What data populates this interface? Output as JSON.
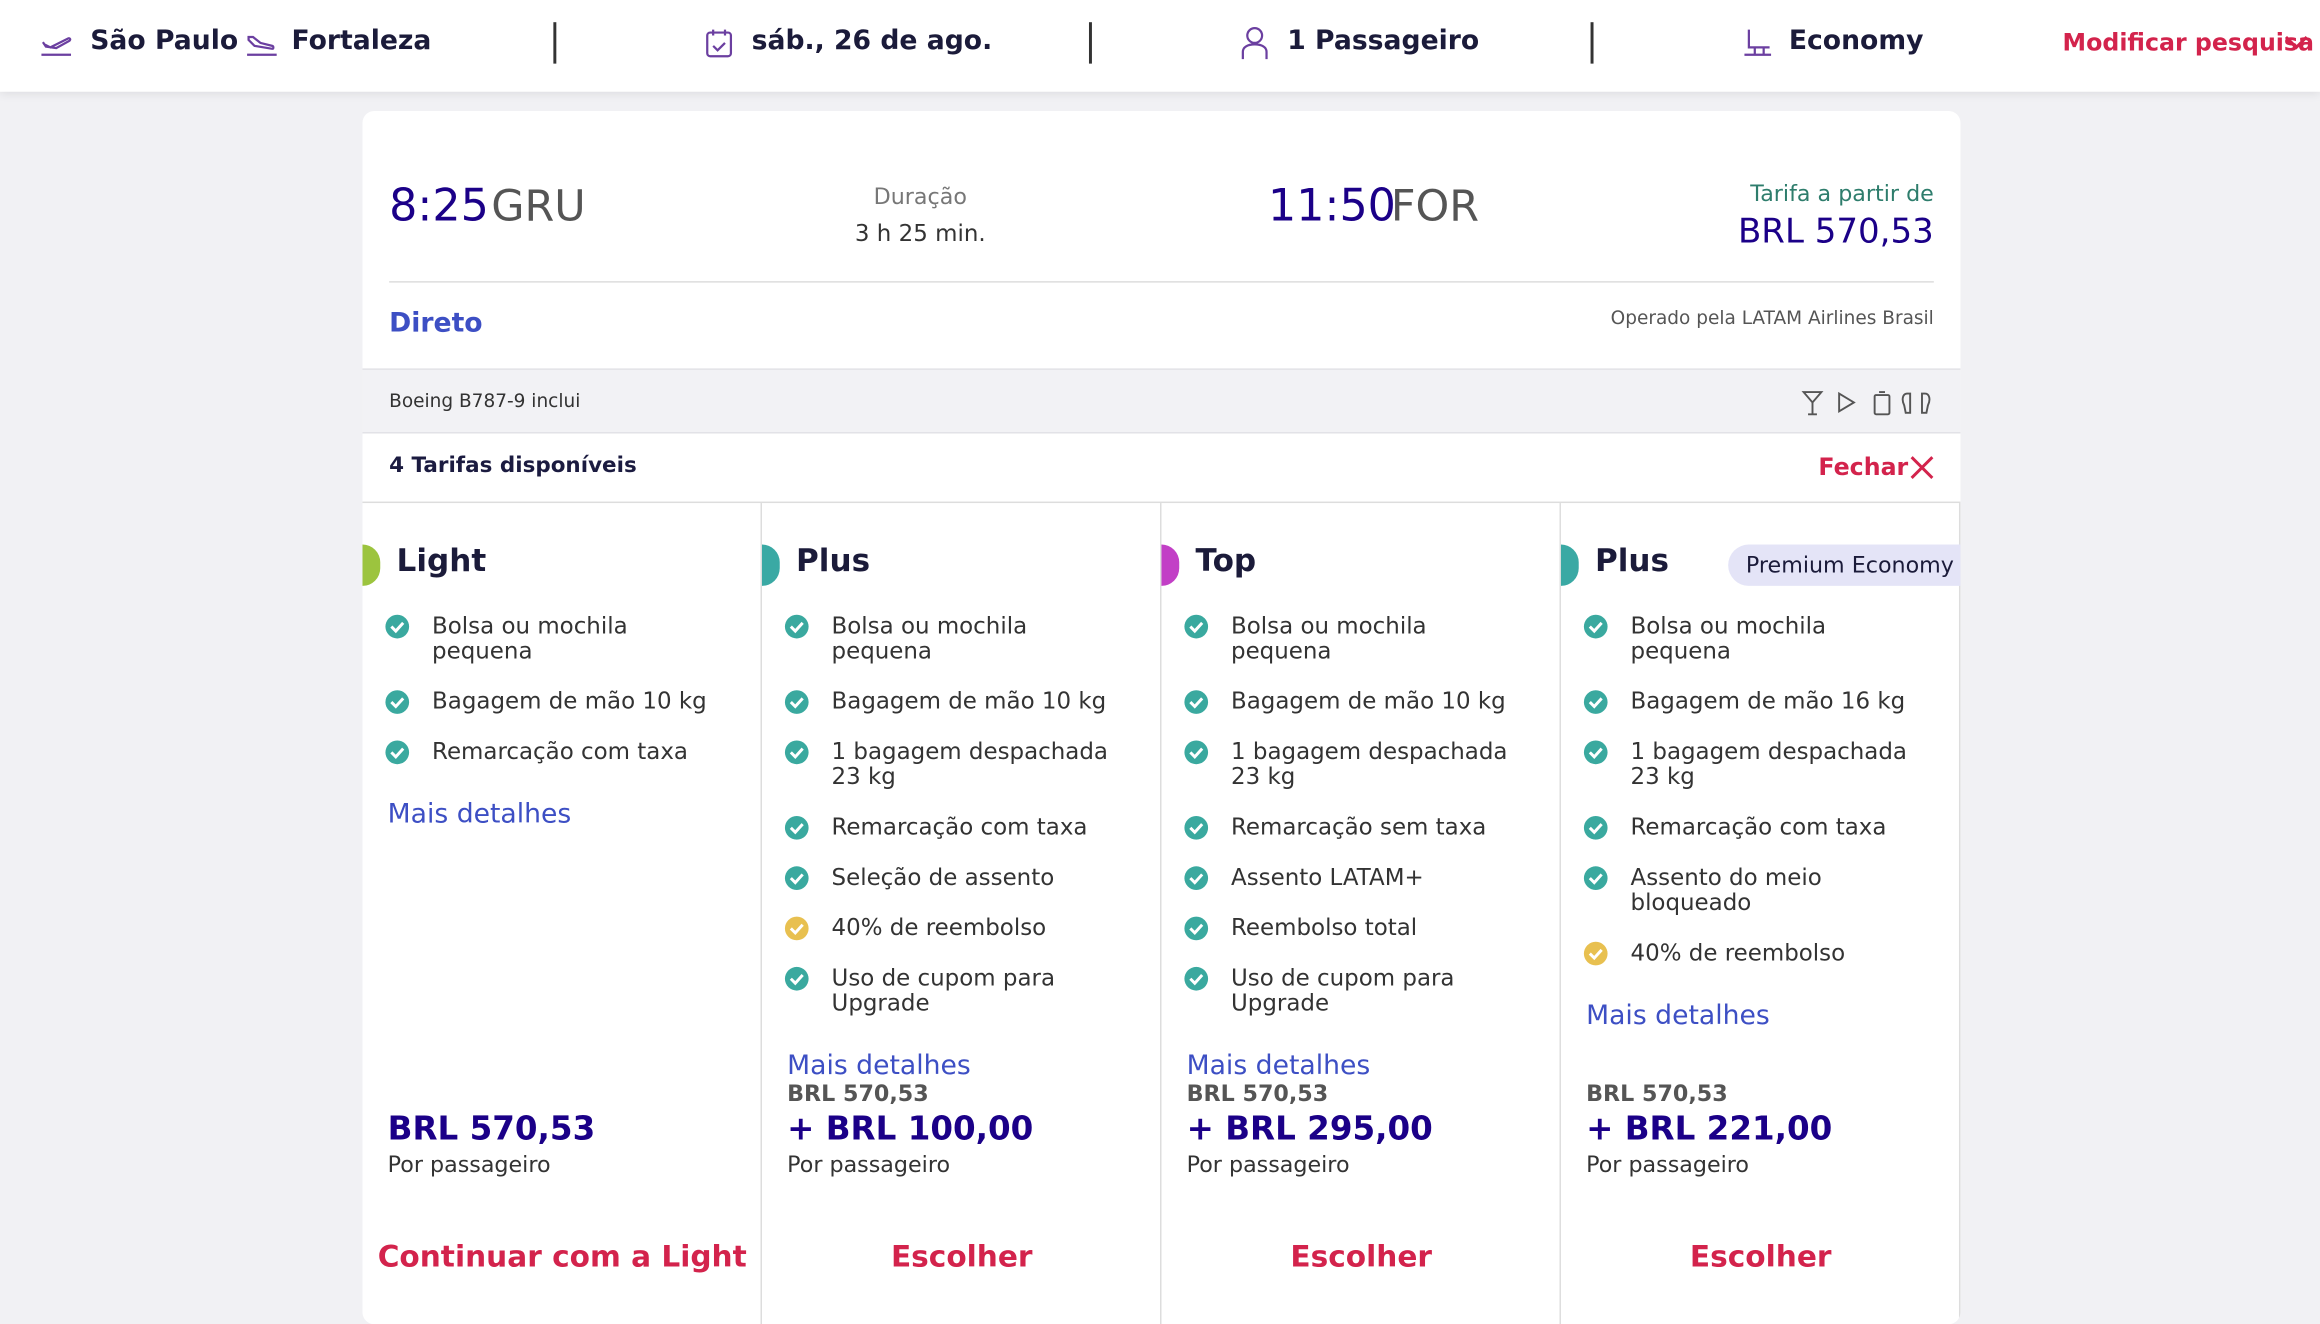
{
  "header": {
    "origin": "São Paulo",
    "destination": "Fortaleza",
    "date": "sáb., 26 de ago.",
    "passengers": "1 Passageiro",
    "cabin": "Economy",
    "modify": "Modificar pesquisa"
  },
  "flight": {
    "departure_time": "8:25",
    "departure_airport": "GRU",
    "duration_label": "Duração",
    "duration": "3 h 25 min.",
    "arrival_time": "11:50",
    "arrival_airport": "FOR",
    "fare_from_label": "Tarifa a partir de",
    "fare_from": "BRL 570,53",
    "stops": "Direto",
    "operator": "Operado pela LATAM Airlines Brasil",
    "aircraft": "Boeing B787-9 inclui"
  },
  "fares_header": {
    "count": "4 Tarifas disponíveis",
    "close": "Fechar"
  },
  "fares": [
    {
      "name": "Light",
      "color": "#9cc43e",
      "features": [
        {
          "text": "Bolsa ou mochila pequena",
          "icon_color": "#3aa99f"
        },
        {
          "text": "Bagagem de mão 10 kg",
          "icon_color": "#3aa99f"
        },
        {
          "text": "Remarcação com taxa",
          "icon_color": "#3aa99f"
        }
      ],
      "details": "Mais detalhes",
      "price": "BRL 570,53",
      "per": "Por passageiro",
      "action": "Continuar com a Light"
    },
    {
      "name": "Plus",
      "color": "#3aa9a4",
      "features": [
        {
          "text": "Bolsa ou mochila pequena",
          "icon_color": "#3aa99f"
        },
        {
          "text": "Bagagem de mão 10 kg",
          "icon_color": "#3aa99f"
        },
        {
          "text": "1 bagagem despachada 23 kg",
          "icon_color": "#3aa99f"
        },
        {
          "text": "Remarcação com taxa",
          "icon_color": "#3aa99f"
        },
        {
          "text": "Seleção de assento",
          "icon_color": "#3aa99f"
        },
        {
          "text": "40% de reembolso",
          "icon_color": "#e8c050"
        },
        {
          "text": "Uso de cupom para Upgrade",
          "icon_color": "#3aa99f"
        }
      ],
      "details": "Mais detalhes",
      "base_price": "BRL 570,53",
      "price": "+ BRL 100,00",
      "per": "Por passageiro",
      "action": "Escolher"
    },
    {
      "name": "Top",
      "color": "#c23fc6",
      "features": [
        {
          "text": "Bolsa ou mochila pequena",
          "icon_color": "#3aa99f"
        },
        {
          "text": "Bagagem de mão 10 kg",
          "icon_color": "#3aa99f"
        },
        {
          "text": "1 bagagem despachada 23 kg",
          "icon_color": "#3aa99f"
        },
        {
          "text": "Remarcação sem taxa",
          "icon_color": "#3aa99f"
        },
        {
          "text": "Assento LATAM+",
          "icon_color": "#3aa99f"
        },
        {
          "text": "Reembolso total",
          "icon_color": "#3aa99f"
        },
        {
          "text": "Uso de cupom para Upgrade",
          "icon_color": "#3aa99f"
        }
      ],
      "details": "Mais detalhes",
      "base_price": "BRL 570,53",
      "price": "+ BRL 295,00",
      "per": "Por passageiro",
      "action": "Escolher"
    },
    {
      "name": "Plus",
      "color": "#3aa9a4",
      "badge": "Premium Economy",
      "features": [
        {
          "text": "Bolsa ou mochila pequena",
          "icon_color": "#3aa99f"
        },
        {
          "text": "Bagagem de mão 16 kg",
          "icon_color": "#3aa99f"
        },
        {
          "text": "1 bagagem despachada 23 kg",
          "icon_color": "#3aa99f"
        },
        {
          "text": "Remarcação com taxa",
          "icon_color": "#3aa99f"
        },
        {
          "text": "Assento do meio bloqueado",
          "icon_color": "#3aa99f"
        },
        {
          "text": "40% de reembolso",
          "icon_color": "#e8c050"
        }
      ],
      "details": "Mais detalhes",
      "base_price": "BRL 570,53",
      "price": "+ BRL 221,00",
      "per": "Por passageiro",
      "action": "Escolher"
    }
  ]
}
